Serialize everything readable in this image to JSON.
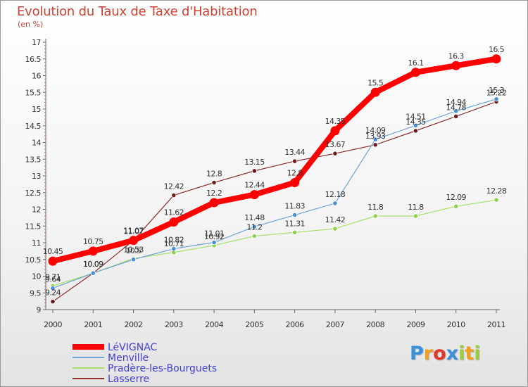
{
  "header": {
    "title": "Evolution du Taux de Taxe d'Habitation",
    "unit": "(en %)"
  },
  "chart_data": {
    "type": "line",
    "title": "Evolution du Taux de Taxe d'Habitation",
    "ylabel": "(en %)",
    "xlabel": "",
    "x": [
      "2000",
      "2001",
      "2002",
      "2003",
      "2004",
      "2005",
      "2006",
      "2007",
      "2008",
      "2009",
      "2010",
      "2011"
    ],
    "ylim": [
      9,
      17
    ],
    "yticks": [
      "9",
      "9.5",
      "10",
      "10.5",
      "11",
      "11.5",
      "12",
      "12.5",
      "13",
      "13.5",
      "14",
      "14.5",
      "15",
      "15.5",
      "16",
      "16.5",
      "17"
    ],
    "grid": false,
    "legend": "bottom-left",
    "series": [
      {
        "name": "LéVIGNAC",
        "color": "#ff0000",
        "values": [
          10.45,
          10.75,
          11.07,
          11.62,
          12.2,
          12.44,
          12.8,
          14.35,
          15.5,
          16.1,
          16.3,
          16.5
        ],
        "labels": [
          "10.45",
          "10.75",
          "11.07",
          "11.62",
          "12.2",
          "12.44",
          "12.8",
          "14.35",
          "15.5",
          "16.1",
          "16.3",
          "16.5"
        ]
      },
      {
        "name": "Menville",
        "color": "#6fa3d8",
        "values": [
          9.64,
          10.09,
          10.5,
          10.82,
          11.01,
          11.48,
          11.83,
          12.18,
          14.09,
          14.51,
          14.94,
          15.3
        ],
        "labels": [
          "9.64",
          "10.09",
          "10.5",
          "10.82",
          "11.01",
          "11.48",
          "11.83",
          "12.18",
          "14.09",
          "14.51",
          "14.94",
          "15.3"
        ]
      },
      {
        "name": "Pradère-les-Bourguets",
        "color": "#a6e06a",
        "values": [
          9.71,
          10.09,
          10.53,
          10.71,
          10.92,
          11.2,
          11.31,
          11.42,
          11.8,
          11.8,
          12.09,
          12.28
        ],
        "labels": [
          "9.71",
          "10.09",
          "10.53",
          "10.71",
          "10.92",
          "11.2",
          "11.31",
          "11.42",
          "11.8",
          "11.8",
          "12.09",
          "12.28"
        ]
      },
      {
        "name": "Lasserre",
        "color": "#8b2f2f",
        "values": [
          9.24,
          10.09,
          11.07,
          12.42,
          12.8,
          13.15,
          13.44,
          13.67,
          13.93,
          14.35,
          14.78,
          15.22
        ],
        "labels": [
          "9.24",
          "10.09",
          "11.07",
          "12.42",
          "12.8",
          "13.15",
          "13.44",
          "13.67",
          "13.93",
          "14.35",
          "14.78",
          "15.22"
        ]
      }
    ]
  },
  "logo": {
    "letters": [
      "P",
      "r",
      "o",
      "x",
      "i",
      "t",
      "i"
    ],
    "colors": [
      "#3a8fd8",
      "#f0a020",
      "#e03a2a",
      "#3a8fd8",
      "#9bcd3a",
      "#f0a020",
      "#9bcd3a"
    ]
  }
}
